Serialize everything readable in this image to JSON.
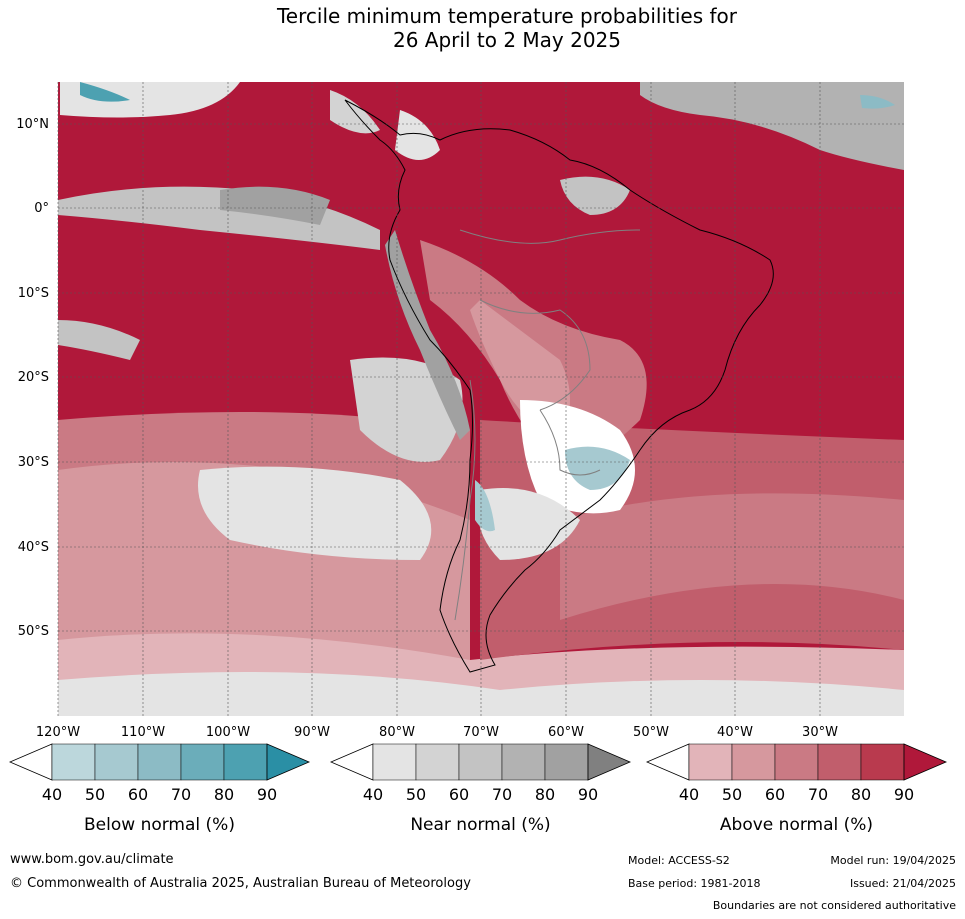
{
  "title": {
    "line1": "Tercile minimum temperature probabilities for",
    "line2": "26 April to 2 May 2025"
  },
  "map": {
    "lat_labels": [
      "10°N",
      "0°",
      "10°S",
      "20°S",
      "30°S",
      "40°S",
      "50°S"
    ],
    "lon_labels": [
      "120°W",
      "110°W",
      "100°W",
      "90°W",
      "80°W",
      "70°W",
      "60°W",
      "50°W",
      "40°W",
      "30°W"
    ]
  },
  "legends": [
    {
      "title": "Below normal (%)",
      "ticks": [
        "40",
        "50",
        "60",
        "70",
        "80",
        "90"
      ],
      "colors": [
        "#ffffff",
        "#bcd7dc",
        "#a6c9d0",
        "#8cbbc5",
        "#6badba",
        "#4da1b1",
        "#2a8fa5"
      ]
    },
    {
      "title": "Near normal (%)",
      "ticks": [
        "40",
        "50",
        "60",
        "70",
        "80",
        "90"
      ],
      "colors": [
        "#ffffff",
        "#e4e4e4",
        "#d3d3d3",
        "#c3c3c3",
        "#b2b2b2",
        "#a1a1a1",
        "#808080"
      ]
    },
    {
      "title": "Above normal (%)",
      "ticks": [
        "40",
        "50",
        "60",
        "70",
        "80",
        "90"
      ],
      "colors": [
        "#ffffff",
        "#e2b4b9",
        "#d6989e",
        "#ca7a84",
        "#c15e6c",
        "#b93a4e",
        "#b0183a"
      ]
    }
  ],
  "footer": {
    "website": "www.bom.gov.au/climate",
    "copyright": "© Commonwealth of Australia 2025, Australian Bureau of Meteorology",
    "model": "Model: ACCESS-S2",
    "base_period": "Base period: 1981-2018",
    "model_run": "Model run: 19/04/2025",
    "issued": "Issued: 21/04/2025",
    "disclaimer": "Boundaries are not considered authoritative"
  }
}
